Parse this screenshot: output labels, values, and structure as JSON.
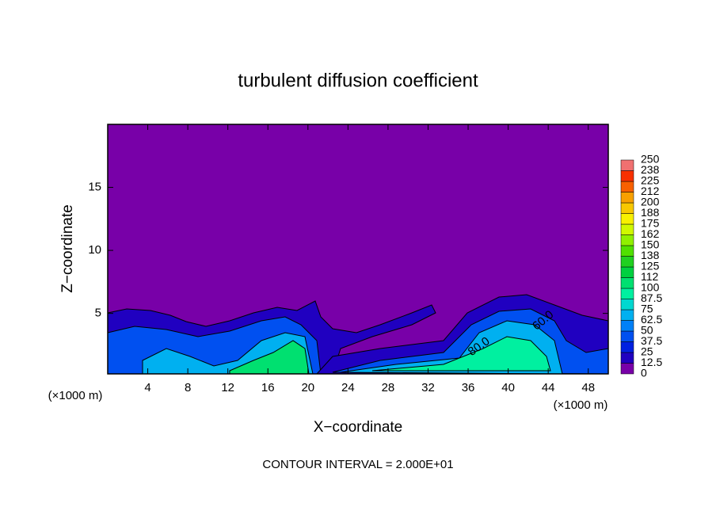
{
  "chart_data": {
    "type": "contour",
    "title": "turbulent diffusion coefficient",
    "xlabel": "X−coordinate",
    "ylabel": "Z−coordinate",
    "x_unit_label": "(×1000 m)",
    "y_unit_label": "(×1000 m)",
    "footer": "CONTOUR INTERVAL = 2.000E+01",
    "contour_labels": [
      "80.0",
      "60.0"
    ],
    "xlim": [
      0,
      50
    ],
    "ylim": [
      0.2,
      20
    ],
    "xticks": [
      4,
      8,
      12,
      16,
      20,
      24,
      28,
      32,
      36,
      40,
      44,
      48
    ],
    "yticks": [
      5,
      10,
      15
    ],
    "colorbar": {
      "levels": [
        0,
        12.5,
        25,
        37.5,
        50,
        62.5,
        75,
        87.5,
        100,
        {
          "value": 112.5,
          "label": "112"
        },
        125,
        {
          "value": 137.5,
          "label": "138"
        },
        150,
        {
          "value": 162.5,
          "label": "162"
        },
        175,
        {
          "value": 187.5,
          "label": "188"
        },
        200,
        {
          "value": 212.5,
          "label": "212"
        },
        225,
        {
          "value": 237.5,
          "label": "238"
        },
        250
      ],
      "colors": [
        "#7800a8",
        "#2000c0",
        "#0020e0",
        "#0050f0",
        "#0080f8",
        "#00b0f0",
        "#00d8d0",
        "#00f0a0",
        "#00e070",
        "#00d040",
        "#20d020",
        "#50e000",
        "#90f000",
        "#d0f800",
        "#f8f000",
        "#f8c800",
        "#f8a000",
        "#f86000",
        "#f83000",
        "#f07070"
      ]
    }
  }
}
